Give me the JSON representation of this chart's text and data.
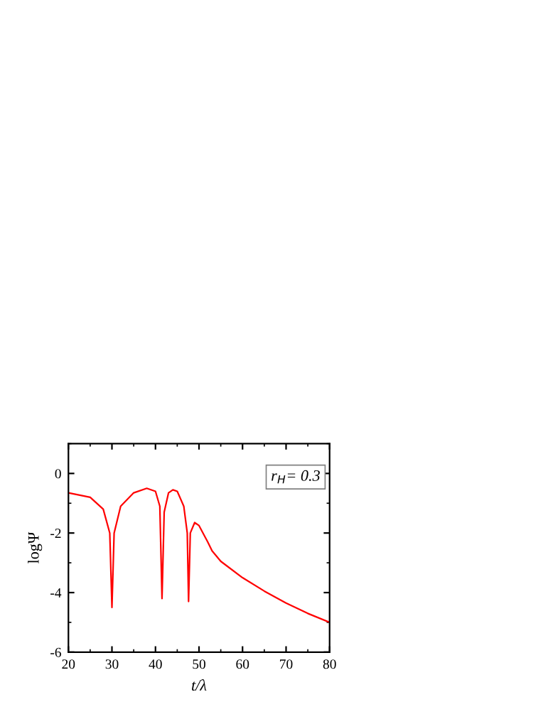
{
  "chart_data": {
    "type": "line",
    "xlabel": "t/λ",
    "ylabel": "logΨ",
    "annotations": [
      "r$_{H}$= 0.3"
    ],
    "x": [
      20,
      25,
      28,
      29.5,
      30,
      30.5,
      32,
      35,
      38,
      40,
      41,
      41.5,
      42,
      43,
      44,
      45,
      46.5,
      47.3,
      47.6,
      48,
      49,
      50,
      52,
      53,
      55,
      60,
      65,
      70,
      75,
      80
    ],
    "series": [
      {
        "color": "#ff0000",
        "values": [
          -0.65,
          -0.8,
          -1.2,
          -2,
          -4.5,
          -2,
          -1.1,
          -0.65,
          -0.5,
          -0.6,
          -1.1,
          -4.2,
          -1.3,
          -0.65,
          -0.55,
          -0.6,
          -1.1,
          -2,
          -4.3,
          -2,
          -1.65,
          -1.75,
          -2.3,
          -2.6,
          -2.95,
          -3.5,
          -3.95,
          -4.35,
          -4.7,
          -5.0
        ]
      }
    ],
    "xlim": [
      20,
      80
    ],
    "xticks": [
      20,
      30,
      40,
      50,
      60,
      70,
      80
    ],
    "ylim": [
      -6,
      1
    ],
    "yticks": [
      -6,
      -4,
      -2,
      0
    ],
    "grid": false,
    "legend": false
  }
}
